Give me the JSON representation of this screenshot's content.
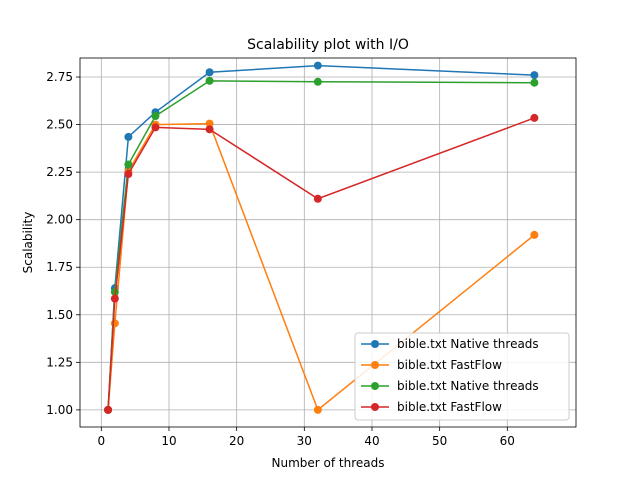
{
  "chart_data": {
    "type": "line",
    "title": "Scalability plot with I/O",
    "xlabel": "Number of threads",
    "ylabel": "Scalability",
    "xlim": [
      -3.15,
      70.15
    ],
    "ylim": [
      0.91,
      2.85
    ],
    "xticks": [
      0,
      10,
      20,
      30,
      40,
      50,
      60
    ],
    "xtick_labels": [
      "0",
      "10",
      "20",
      "30",
      "40",
      "50",
      "60"
    ],
    "yticks": [
      1.0,
      1.25,
      1.5,
      1.75,
      2.0,
      2.25,
      2.5,
      2.75
    ],
    "ytick_labels": [
      "1.00",
      "1.25",
      "1.50",
      "1.75",
      "2.00",
      "2.25",
      "2.50",
      "2.75"
    ],
    "grid": true,
    "legend_position": "lower-right",
    "x": [
      1,
      2,
      4,
      8,
      16,
      32,
      64
    ],
    "series": [
      {
        "name": "bible.txt Native threads",
        "color": "#1f77b4",
        "values": [
          1.0,
          1.64,
          2.435,
          2.565,
          2.775,
          2.81,
          2.76
        ]
      },
      {
        "name": "bible.txt FastFlow",
        "color": "#ff7f0e",
        "values": [
          1.0,
          1.455,
          2.255,
          2.5,
          2.505,
          1.0,
          1.92
        ]
      },
      {
        "name": "bible.txt Native threads",
        "color": "#2ca02c",
        "values": [
          1.0,
          1.62,
          2.29,
          2.545,
          2.73,
          2.725,
          2.72
        ]
      },
      {
        "name": "bible.txt FastFlow",
        "color": "#d62728",
        "values": [
          1.0,
          1.585,
          2.24,
          2.485,
          2.475,
          2.11,
          2.535
        ]
      }
    ]
  }
}
